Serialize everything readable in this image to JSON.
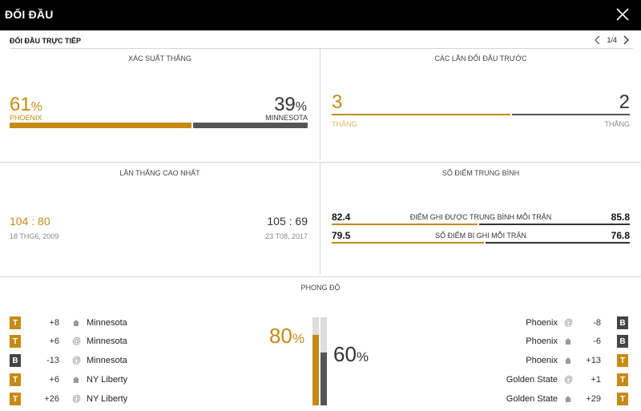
{
  "header": {
    "title": "ĐỐI ĐẦU"
  },
  "subheader": {
    "label": "ĐỐI ĐẦU TRỰC TIẾP",
    "pager": "1/4"
  },
  "win_probability": {
    "title": "XÁC SUẤT THẮNG",
    "home": {
      "value": "61",
      "unit": "%",
      "team": "PHOENIX",
      "fraction": 0.61
    },
    "away": {
      "value": "39",
      "unit": "%",
      "team": "MINNESOTA",
      "fraction": 0.39
    }
  },
  "previous_meetings": {
    "title": "CÁC LẦN ĐỐI ĐẦU TRƯỚC",
    "home": {
      "value": "3",
      "label": "THẮNG"
    },
    "away": {
      "value": "2",
      "label": "THẮNG"
    },
    "home_fraction": 0.6
  },
  "biggest_win": {
    "title": "LẦN THẮNG CAO NHẤT",
    "home": {
      "score": "104 : 80",
      "date": "18 THG6, 2009"
    },
    "away": {
      "score": "105 : 69",
      "date": "23 T08, 2017"
    }
  },
  "average_points": {
    "title": "SỐ ĐIỂM TRUNG BÌNH",
    "rows": [
      {
        "label": "ĐIỂM GHI ĐƯỢC TRUNG BÌNH MỖI TRẬN",
        "home": "82.4",
        "away": "85.8",
        "home_fraction": 0.49
      },
      {
        "label": "SỐ ĐIỂM BỊ GHI MỖI TRẬN",
        "home": "79.5",
        "away": "76.8",
        "home_fraction": 0.51
      }
    ]
  },
  "form": {
    "title": "PHONG ĐỘ",
    "home_pct": {
      "value": "80",
      "unit": "%",
      "fraction": 0.8
    },
    "away_pct": {
      "value": "60",
      "unit": "%",
      "fraction": 0.6
    },
    "home_games": [
      {
        "result": "T",
        "margin": "+8",
        "venue": "home",
        "venue_icon": "home-icon",
        "opponent": "Minnesota"
      },
      {
        "result": "T",
        "margin": "+6",
        "venue": "away",
        "venue_icon": "at-icon",
        "opponent": "Minnesota"
      },
      {
        "result": "B",
        "margin": "-13",
        "venue": "away",
        "venue_icon": "at-icon",
        "opponent": "Minnesota"
      },
      {
        "result": "T",
        "margin": "+6",
        "venue": "home",
        "venue_icon": "home-icon",
        "opponent": "NY Liberty"
      },
      {
        "result": "T",
        "margin": "+26",
        "venue": "away",
        "venue_icon": "at-icon",
        "opponent": "NY Liberty"
      }
    ],
    "away_games": [
      {
        "opponent": "Phoenix",
        "venue": "away",
        "venue_icon": "at-icon",
        "margin": "-8",
        "result": "B"
      },
      {
        "opponent": "Phoenix",
        "venue": "home",
        "venue_icon": "home-icon",
        "margin": "-6",
        "result": "B"
      },
      {
        "opponent": "Phoenix",
        "venue": "home",
        "venue_icon": "home-icon",
        "margin": "+13",
        "result": "T"
      },
      {
        "opponent": "Golden State",
        "venue": "away",
        "venue_icon": "at-icon",
        "margin": "+1",
        "result": "T"
      },
      {
        "opponent": "Golden State",
        "venue": "home",
        "venue_icon": "home-icon",
        "margin": "+29",
        "result": "T"
      }
    ]
  },
  "colors": {
    "home": "#c68a17",
    "away": "#555555",
    "header_bg": "#000000"
  }
}
